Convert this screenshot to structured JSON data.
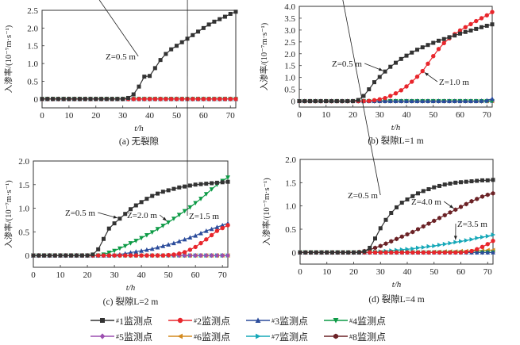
{
  "legend": [
    {
      "id": "1",
      "label": "1监测点",
      "prefix": "#",
      "color": "#333333",
      "marker": "square"
    },
    {
      "id": "2",
      "label": "2监测点",
      "prefix": "#",
      "color": "#e8262c",
      "marker": "circle"
    },
    {
      "id": "3",
      "label": "3监测点",
      "prefix": "#",
      "color": "#2b4c9b",
      "marker": "triangle-up"
    },
    {
      "id": "4",
      "label": "4监测点",
      "prefix": "#",
      "color": "#0c9a45",
      "marker": "triangle-down"
    },
    {
      "id": "5",
      "label": "5监测点",
      "prefix": "#",
      "color": "#9c4fb0",
      "marker": "diamond"
    },
    {
      "id": "6",
      "label": "6监测点",
      "prefix": "#",
      "color": "#d48a1e",
      "marker": "triangle-left"
    },
    {
      "id": "7",
      "label": "7监测点",
      "prefix": "#",
      "color": "#17a8b8",
      "marker": "triangle-right"
    },
    {
      "id": "8",
      "label": "8监测点",
      "prefix": "#",
      "color": "#6b2226",
      "marker": "hexagon"
    }
  ],
  "chart_data": [
    {
      "type": "line",
      "panel": "a",
      "caption": "(a) 无裂隙",
      "xlabel": "t/h",
      "ylabel": "入渗率/(10⁻⁷m·s⁻¹)",
      "xlim": [
        0,
        72
      ],
      "ylim": [
        -0.25,
        2.5
      ],
      "xticks": [
        0,
        10,
        20,
        30,
        40,
        50,
        60,
        70
      ],
      "yticks": [
        0,
        0.5,
        1.0,
        1.5,
        2.0,
        2.5
      ],
      "ytick_labels": [
        "0",
        "0.5",
        "1.0",
        "1.5",
        "2.0",
        "2.5"
      ],
      "x": [
        0,
        2,
        4,
        6,
        8,
        10,
        12,
        14,
        16,
        18,
        20,
        22,
        24,
        26,
        28,
        30,
        32,
        34,
        36,
        38,
        40,
        42,
        44,
        46,
        48,
        50,
        52,
        54,
        56,
        58,
        60,
        62,
        64,
        66,
        68,
        70,
        72
      ],
      "series": [
        {
          "id": "1",
          "values": [
            0,
            0,
            0,
            0,
            0,
            0,
            0,
            0,
            0,
            0,
            0,
            0,
            0,
            0,
            0,
            0,
            0.03,
            0.13,
            0.35,
            0.63,
            0.65,
            0.87,
            1.1,
            1.27,
            1.4,
            1.5,
            1.6,
            1.7,
            1.8,
            1.9,
            2.0,
            2.1,
            2.18,
            2.25,
            2.32,
            2.4,
            2.46
          ]
        },
        {
          "id": "2",
          "values": "zeros"
        },
        {
          "id": "3",
          "values": "zeros"
        },
        {
          "id": "4",
          "values": "zeros"
        },
        {
          "id": "5",
          "values": "zeros"
        },
        {
          "id": "6",
          "values": "zeros"
        },
        {
          "id": "7",
          "values": "zeros"
        },
        {
          "id": "8",
          "values": "zeros"
        }
      ],
      "annotations": [
        {
          "text": "Z=0.5 m",
          "series": "1",
          "target_x": 43
        }
      ]
    },
    {
      "type": "line",
      "panel": "b",
      "caption": "(b) 裂隙L=1 m",
      "xlabel": "t/h",
      "ylabel": "入渗率/(10⁻⁷m·s⁻¹)",
      "xlim": [
        0,
        72
      ],
      "ylim": [
        -0.25,
        4.0
      ],
      "xticks": [
        0,
        10,
        20,
        30,
        40,
        50,
        60,
        70
      ],
      "yticks": [
        0,
        0.5,
        1.0,
        1.5,
        2.0,
        2.5,
        3.0,
        3.5,
        4.0
      ],
      "ytick_labels": [
        "0",
        "0.5",
        "1.0",
        "1.5",
        "2.0",
        "2.5",
        "3.0",
        "3.5",
        "4.0"
      ],
      "x": [
        0,
        2,
        4,
        6,
        8,
        10,
        12,
        14,
        16,
        18,
        20,
        22,
        24,
        26,
        28,
        30,
        32,
        34,
        36,
        38,
        40,
        42,
        44,
        46,
        48,
        50,
        52,
        54,
        56,
        58,
        60,
        62,
        64,
        66,
        68,
        70,
        72
      ],
      "series": [
        {
          "id": "1",
          "values": [
            0,
            0,
            0,
            0,
            0,
            0,
            0,
            0,
            0,
            0,
            0,
            0.05,
            0.22,
            0.5,
            0.8,
            1.02,
            1.25,
            1.45,
            1.62,
            1.78,
            1.92,
            2.05,
            2.17,
            2.27,
            2.37,
            2.46,
            2.55,
            2.62,
            2.7,
            2.77,
            2.85,
            2.92,
            2.98,
            3.05,
            3.12,
            3.18,
            3.24
          ]
        },
        {
          "id": "2",
          "values": [
            0,
            0,
            0,
            0,
            0,
            0,
            0,
            0,
            0,
            0,
            0,
            0,
            0,
            0.01,
            0.04,
            0.08,
            0.13,
            0.22,
            0.33,
            0.46,
            0.62,
            0.82,
            1.03,
            1.27,
            1.58,
            1.9,
            2.2,
            2.45,
            2.65,
            2.83,
            2.98,
            3.12,
            3.25,
            3.38,
            3.5,
            3.62,
            3.76
          ]
        },
        {
          "id": "3",
          "values": [
            0,
            0,
            0,
            0,
            0,
            0,
            0,
            0,
            0,
            0,
            0,
            0,
            0,
            0,
            0,
            0,
            0,
            0,
            0,
            0,
            0,
            0,
            0,
            0,
            0,
            0,
            0,
            0,
            0,
            0,
            0,
            0,
            0,
            0,
            0.01,
            0.03,
            0.1
          ]
        },
        {
          "id": "4",
          "values": "zeros"
        },
        {
          "id": "5",
          "values": "zeros"
        },
        {
          "id": "6",
          "values": "zeros"
        },
        {
          "id": "7",
          "values": "zeros"
        },
        {
          "id": "8",
          "values": "zeros"
        }
      ],
      "annotations": [
        {
          "text": "Z=0.5 m",
          "series": "1",
          "target_x": 32
        },
        {
          "text": "Z=1.0 m",
          "series": "2",
          "target_x": 46
        }
      ]
    },
    {
      "type": "line",
      "panel": "c",
      "caption": "(c) 裂隙L=2 m",
      "xlabel": "t/h",
      "ylabel": "入渗率/(10⁻⁷m·s⁻¹)",
      "xlim": [
        0,
        72
      ],
      "ylim": [
        -0.25,
        2.0
      ],
      "xticks": [
        0,
        10,
        20,
        30,
        40,
        50,
        60,
        70
      ],
      "yticks": [
        0,
        0.5,
        1.0,
        1.5,
        2.0
      ],
      "ytick_labels": [
        "0",
        "0.5",
        "1.0",
        "1.5",
        "2.0"
      ],
      "x": [
        0,
        2,
        4,
        6,
        8,
        10,
        12,
        14,
        16,
        18,
        20,
        22,
        24,
        26,
        28,
        30,
        32,
        34,
        36,
        38,
        40,
        42,
        44,
        46,
        48,
        50,
        52,
        54,
        56,
        58,
        60,
        62,
        64,
        66,
        68,
        70,
        72
      ],
      "series": [
        {
          "id": "1",
          "values": [
            0,
            0,
            0,
            0,
            0,
            0,
            0,
            0,
            0,
            0,
            0,
            0.02,
            0.13,
            0.35,
            0.57,
            0.68,
            0.78,
            0.88,
            0.98,
            1.06,
            1.13,
            1.2,
            1.26,
            1.31,
            1.35,
            1.38,
            1.41,
            1.44,
            1.46,
            1.48,
            1.5,
            1.51,
            1.52,
            1.53,
            1.54,
            1.55,
            1.56
          ]
        },
        {
          "id": "2",
          "values": [
            0,
            0,
            0,
            0,
            0,
            0,
            0,
            0,
            0,
            0,
            0,
            0,
            0,
            0,
            0,
            0,
            0,
            0,
            0,
            0,
            0,
            0,
            0,
            0,
            0,
            0.01,
            0.02,
            0.04,
            0.07,
            0.12,
            0.18,
            0.26,
            0.34,
            0.43,
            0.52,
            0.58,
            0.64
          ]
        },
        {
          "id": "3",
          "values": [
            0,
            0,
            0,
            0,
            0,
            0,
            0,
            0,
            0,
            0,
            0,
            0,
            0,
            0,
            0,
            0.01,
            0.02,
            0.04,
            0.06,
            0.08,
            0.1,
            0.12,
            0.14,
            0.17,
            0.2,
            0.23,
            0.26,
            0.3,
            0.34,
            0.38,
            0.42,
            0.47,
            0.52,
            0.56,
            0.6,
            0.64,
            0.68
          ]
        },
        {
          "id": "4",
          "values": [
            0,
            0,
            0,
            0,
            0,
            0,
            0,
            0,
            0,
            0,
            0,
            0,
            0,
            0.02,
            0.06,
            0.1,
            0.15,
            0.2,
            0.26,
            0.31,
            0.37,
            0.43,
            0.49,
            0.56,
            0.63,
            0.7,
            0.78,
            0.86,
            0.94,
            1.02,
            1.11,
            1.2,
            1.3,
            1.4,
            1.5,
            1.58,
            1.65
          ]
        },
        {
          "id": "5",
          "values": "zeros"
        },
        {
          "id": "6",
          "values": "zeros"
        },
        {
          "id": "7",
          "values": "zeros"
        },
        {
          "id": "8",
          "values": "zeros"
        }
      ],
      "annotations": [
        {
          "text": "Z=0.5 m",
          "series": "1",
          "target_x": 32
        },
        {
          "text": "Z=2.0 m",
          "series": "4",
          "target_x": 50
        },
        {
          "text": "Z=1.5 m",
          "series": "3",
          "target_x": 57
        }
      ]
    },
    {
      "type": "line",
      "panel": "d",
      "caption": "(d) 裂隙L=4 m",
      "xlabel": "t/h",
      "ylabel": "入渗率/(10⁻⁷m·s⁻¹)",
      "xlim": [
        0,
        72
      ],
      "ylim": [
        -0.25,
        2.0
      ],
      "xticks": [
        0,
        10,
        20,
        30,
        40,
        50,
        60,
        70
      ],
      "yticks": [
        0,
        0.5,
        1.0,
        1.5,
        2.0
      ],
      "ytick_labels": [
        "0",
        "0.5",
        "1.0",
        "1.5",
        "2.0"
      ],
      "x": [
        0,
        2,
        4,
        6,
        8,
        10,
        12,
        14,
        16,
        18,
        20,
        22,
        24,
        26,
        28,
        30,
        32,
        34,
        36,
        38,
        40,
        42,
        44,
        46,
        48,
        50,
        52,
        54,
        56,
        58,
        60,
        62,
        64,
        66,
        68,
        70,
        72
      ],
      "series": [
        {
          "id": "1",
          "values": [
            0,
            0,
            0,
            0,
            0,
            0,
            0,
            0,
            0,
            0,
            0,
            0,
            0.02,
            0.1,
            0.3,
            0.52,
            0.7,
            0.85,
            0.97,
            1.07,
            1.14,
            1.21,
            1.27,
            1.32,
            1.36,
            1.4,
            1.43,
            1.46,
            1.48,
            1.5,
            1.51,
            1.52,
            1.53,
            1.54,
            1.55,
            1.55,
            1.56
          ]
        },
        {
          "id": "2",
          "values": [
            0,
            0,
            0,
            0,
            0,
            0,
            0,
            0,
            0,
            0,
            0,
            0,
            0,
            0,
            0,
            0,
            0,
            0,
            0,
            0,
            0,
            0,
            0,
            0,
            0,
            0,
            0,
            0,
            0,
            0,
            0,
            0.01,
            0.03,
            0.07,
            0.12,
            0.18,
            0.25
          ]
        },
        {
          "id": "3",
          "values": "zeros"
        },
        {
          "id": "4",
          "values": "zeros"
        },
        {
          "id": "5",
          "values": "zeros"
        },
        {
          "id": "6",
          "values": [
            0,
            0,
            0,
            0,
            0,
            0,
            0,
            0,
            0,
            0,
            0,
            0,
            0,
            0,
            0,
            0,
            0,
            0,
            0,
            0,
            0,
            0,
            0,
            0,
            0,
            0.01,
            0.01,
            0.02,
            0.02,
            0.02,
            0.03,
            0.03,
            0.03,
            0.04,
            0.04,
            0.05,
            0.05
          ]
        },
        {
          "id": "7",
          "values": [
            0,
            0,
            0,
            0,
            0,
            0,
            0,
            0,
            0,
            0,
            0,
            0,
            0,
            0,
            0.01,
            0.02,
            0.03,
            0.04,
            0.05,
            0.06,
            0.07,
            0.08,
            0.1,
            0.11,
            0.13,
            0.14,
            0.16,
            0.18,
            0.2,
            0.22,
            0.24,
            0.26,
            0.28,
            0.31,
            0.33,
            0.35,
            0.38
          ]
        },
        {
          "id": "8",
          "values": [
            0,
            0,
            0,
            0,
            0,
            0,
            0,
            0,
            0,
            0,
            0,
            0.01,
            0.03,
            0.06,
            0.1,
            0.14,
            0.19,
            0.24,
            0.29,
            0.34,
            0.39,
            0.44,
            0.5,
            0.56,
            0.62,
            0.68,
            0.74,
            0.8,
            0.86,
            0.92,
            0.98,
            1.04,
            1.1,
            1.15,
            1.2,
            1.24,
            1.27
          ]
        }
      ],
      "annotations": [
        {
          "text": "Z=0.5 m",
          "series": "1",
          "target_x": 37
        },
        {
          "text": "Z=4.0 m",
          "series": "8",
          "target_x": 58
        },
        {
          "text": "Z=3.5 m",
          "series": "7",
          "target_x": 58
        }
      ]
    }
  ]
}
